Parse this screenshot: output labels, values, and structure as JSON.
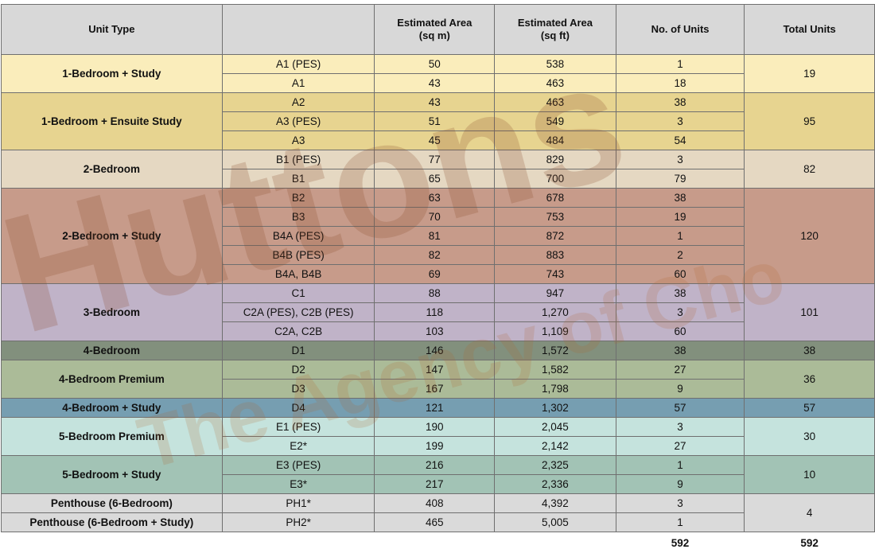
{
  "table": {
    "headers": [
      "Unit Type",
      "",
      "Estimated Area\n(sq m)",
      "Estimated  Area\n(sq ft)",
      "No. of Units",
      "Total Units"
    ],
    "groups": [
      {
        "name": "1-Bedroom + Study",
        "total": "19",
        "color": "#faedbb",
        "rows": [
          {
            "type": "A1 (PES)",
            "sqm": "50",
            "sqft": "538",
            "units": "1"
          },
          {
            "type": "A1",
            "sqm": "43",
            "sqft": "463",
            "units": "18"
          }
        ]
      },
      {
        "name": "1-Bedroom + Ensuite Study",
        "total": "95",
        "color": "#e7d490",
        "rows": [
          {
            "type": "A2",
            "sqm": "43",
            "sqft": "463",
            "units": "38"
          },
          {
            "type": "A3 (PES)",
            "sqm": "51",
            "sqft": "549",
            "units": "3"
          },
          {
            "type": "A3",
            "sqm": "45",
            "sqft": "484",
            "units": "54"
          }
        ]
      },
      {
        "name": "2-Bedroom",
        "total": "82",
        "color": "#e5d8c2",
        "rows": [
          {
            "type": "B1 (PES)",
            "sqm": "77",
            "sqft": "829",
            "units": "3"
          },
          {
            "type": "B1",
            "sqm": "65",
            "sqft": "700",
            "units": "79"
          }
        ]
      },
      {
        "name": "2-Bedroom + Study",
        "total": "120",
        "color": "#c79b8a",
        "rows": [
          {
            "type": "B2",
            "sqm": "63",
            "sqft": "678",
            "units": "38"
          },
          {
            "type": "B3",
            "sqm": "70",
            "sqft": "753",
            "units": "19"
          },
          {
            "type": "B4A (PES)",
            "sqm": "81",
            "sqft": "872",
            "units": "1"
          },
          {
            "type": "B4B (PES)",
            "sqm": "82",
            "sqft": "883",
            "units": "2"
          },
          {
            "type": "B4A, B4B",
            "sqm": "69",
            "sqft": "743",
            "units": "60"
          }
        ]
      },
      {
        "name": "3-Bedroom",
        "total": "101",
        "color": "#c0b3c8",
        "rows": [
          {
            "type": "C1",
            "sqm": "88",
            "sqft": "947",
            "units": "38"
          },
          {
            "type": "C2A (PES), C2B (PES)",
            "sqm": "118",
            "sqft": "1,270",
            "units": "3"
          },
          {
            "type": "C2A, C2B",
            "sqm": "103",
            "sqft": "1,109",
            "units": "60"
          }
        ]
      },
      {
        "name": "4-Bedroom",
        "total": "38",
        "color": "#82907d",
        "rows": [
          {
            "type": "D1",
            "sqm": "146",
            "sqft": "1,572",
            "units": "38"
          }
        ]
      },
      {
        "name": "4-Bedroom Premium",
        "total": "36",
        "color": "#abbb98",
        "rows": [
          {
            "type": "D2",
            "sqm": "147",
            "sqft": "1,582",
            "units": "27"
          },
          {
            "type": "D3",
            "sqm": "167",
            "sqft": "1,798",
            "units": "9"
          }
        ]
      },
      {
        "name": "4-Bedroom + Study",
        "total": "57",
        "color": "#769eb1",
        "rows": [
          {
            "type": "D4",
            "sqm": "121",
            "sqft": "1,302",
            "units": "57"
          }
        ]
      },
      {
        "name": "5-Bedroom Premium",
        "total": "30",
        "color": "#c5e3dd",
        "rows": [
          {
            "type": "E1 (PES)",
            "sqm": "190",
            "sqft": "2,045",
            "units": "3"
          },
          {
            "type": "E2*",
            "sqm": "199",
            "sqft": "2,142",
            "units": "27"
          }
        ]
      },
      {
        "name": "5-Bedroom + Study",
        "total": "10",
        "color": "#a2c3b5",
        "rows": [
          {
            "type": "E3 (PES)",
            "sqm": "216",
            "sqft": "2,325",
            "units": "1"
          },
          {
            "type": "E3*",
            "sqm": "217",
            "sqft": "2,336",
            "units": "9"
          }
        ]
      },
      {
        "name": "Penthouse (6-Bedroom)",
        "total": "4",
        "color": "#dadada",
        "rows": [
          {
            "type": "PH1*",
            "sqm": "408",
            "sqft": "4,392",
            "units": "3"
          }
        ]
      },
      {
        "name": "Penthouse (6-Bedroom + Study)",
        "total": "",
        "color": "#dadada",
        "rows": [
          {
            "type": "PH2*",
            "sqm": "465",
            "sqft": "5,005",
            "units": "1"
          }
        ]
      }
    ],
    "sum_units": "592",
    "sum_total": "592"
  },
  "watermark": {
    "line1": "Huttons",
    "line2": "The Agency of Cho"
  }
}
